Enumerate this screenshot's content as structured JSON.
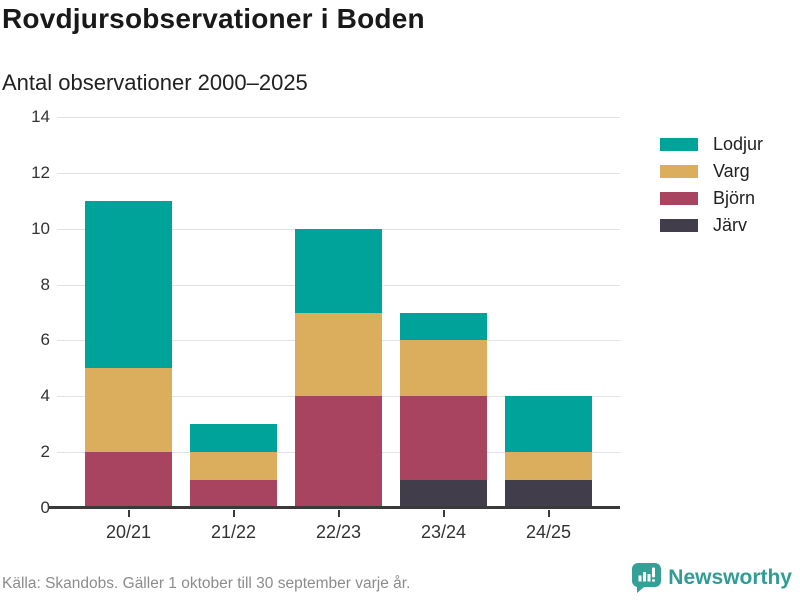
{
  "header": {
    "title": "Rovdjursobservationer i Boden",
    "subtitle": "Antal observationer 2000–2025"
  },
  "chart_data": {
    "type": "bar",
    "stacked": true,
    "title": "Rovdjursobservationer i Boden",
    "subtitle": "Antal observationer 2000–2025",
    "categories": [
      "20/21",
      "21/22",
      "22/23",
      "23/24",
      "24/25"
    ],
    "series": [
      {
        "name": "Lodjur",
        "color": "#00a39a",
        "values": [
          6,
          1,
          3,
          1,
          2
        ]
      },
      {
        "name": "Varg",
        "color": "#dbae5e",
        "values": [
          3,
          1,
          3,
          2,
          1
        ]
      },
      {
        "name": "Björn",
        "color": "#a84360",
        "values": [
          2,
          1,
          4,
          3,
          0
        ]
      },
      {
        "name": "Järv",
        "color": "#413d4b",
        "values": [
          0,
          0,
          0,
          1,
          1
        ]
      }
    ],
    "totals": [
      11,
      3,
      10,
      7,
      4
    ],
    "ylim": [
      0,
      14
    ],
    "yticks": [
      0,
      2,
      4,
      6,
      8,
      10,
      12,
      14
    ],
    "grid": true,
    "gridline_color": "#e2e2e2",
    "axis_color": "#3a3a3a",
    "legend_position": "right",
    "stack_order": "reverse-of-legend"
  },
  "footer": {
    "source": "Källa: Skandobs. Gäller 1 oktober till 30 september varje år.",
    "brand": "Newsworthy",
    "brand_color": "#35a095"
  }
}
